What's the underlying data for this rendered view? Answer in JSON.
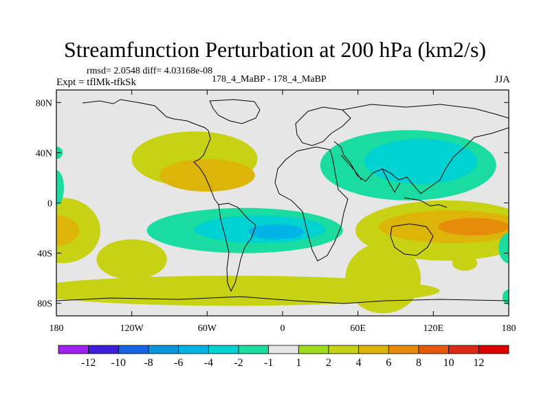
{
  "chart_data": {
    "type": "heatmap",
    "title": "Streamfunction Perturbation at 200 hPa (km2/s)",
    "annotations": {
      "rmsd": "rmsd= 2.0548 diff= 4.03168e-08",
      "expt": "Expt = tflMk-tfkSk",
      "runs": "178_4_MaBP - 178_4_MaBP",
      "season": "JJA"
    },
    "x_ticks": [
      "180",
      "120W",
      "60W",
      "0",
      "60E",
      "120E",
      "180"
    ],
    "y_ticks": [
      "80N",
      "40N",
      "0",
      "40S",
      "80S"
    ],
    "xlim": [
      -180,
      180
    ],
    "ylim": [
      -90,
      90
    ],
    "colorbar": {
      "labels": [
        "-12",
        "-10",
        "-8",
        "-6",
        "-4",
        "-2",
        "-1",
        "1",
        "2",
        "4",
        "6",
        "8",
        "10",
        "12"
      ],
      "colors": [
        "#a020f0",
        "#3f1edc",
        "#1464e6",
        "#0a96dc",
        "#00b4e6",
        "#00d2d2",
        "#1adca0",
        "#e6e6e6",
        "#a0dc1e",
        "#c8d214",
        "#dcb40a",
        "#e68c0a",
        "#e65a0a",
        "#dc2814",
        "#dc0000"
      ]
    },
    "regions": [
      {
        "level": 2,
        "lon": -70,
        "lat": 35,
        "rx": 50,
        "ry": 22
      },
      {
        "level": 4,
        "lon": -60,
        "lat": 22,
        "rx": 38,
        "ry": 13
      },
      {
        "level": -2,
        "lon": 100,
        "lat": 30,
        "rx": 70,
        "ry": 28
      },
      {
        "level": -4,
        "lon": 110,
        "lat": 33,
        "rx": 45,
        "ry": 18
      },
      {
        "level": -2,
        "lon": -30,
        "lat": -22,
        "rx": 78,
        "ry": 18
      },
      {
        "level": -4,
        "lon": -18,
        "lat": -21,
        "rx": 52,
        "ry": 11
      },
      {
        "level": -6,
        "lon": -5,
        "lat": -23,
        "rx": 22,
        "ry": 6
      },
      {
        "level": 2,
        "lon": 130,
        "lat": -22,
        "rx": 72,
        "ry": 24
      },
      {
        "level": 4,
        "lon": 135,
        "lat": -19,
        "rx": 58,
        "ry": 13
      },
      {
        "level": 6,
        "lon": 152,
        "lat": -19,
        "rx": 28,
        "ry": 7
      },
      {
        "level": 2,
        "lon": -175,
        "lat": -22,
        "rx": 30,
        "ry": 26
      },
      {
        "level": 4,
        "lon": -180,
        "lat": -22,
        "rx": 18,
        "ry": 12
      },
      {
        "level": 2,
        "lon": -120,
        "lat": -45,
        "rx": 28,
        "ry": 16
      },
      {
        "level": 2,
        "lon": -40,
        "lat": -70,
        "rx": 165,
        "ry": 12
      },
      {
        "level": 2,
        "lon": 80,
        "lat": -60,
        "rx": 30,
        "ry": 28
      },
      {
        "level": -2,
        "lon": -180,
        "lat": 12,
        "rx": 6,
        "ry": 14
      },
      {
        "level": -2,
        "lon": -180,
        "lat": 40,
        "rx": 5,
        "ry": 5
      },
      {
        "level": -2,
        "lon": 180,
        "lat": -36,
        "rx": 8,
        "ry": 12
      },
      {
        "level": -2,
        "lon": 180,
        "lat": -75,
        "rx": 5,
        "ry": 6
      },
      {
        "level": 2,
        "lon": 145,
        "lat": -48,
        "rx": 10,
        "ry": 6
      }
    ]
  }
}
